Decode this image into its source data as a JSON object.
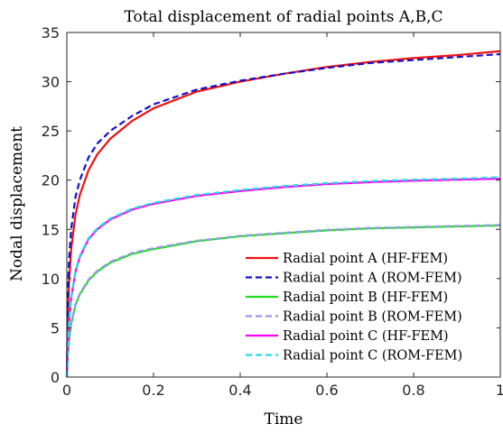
{
  "chart_data": {
    "type": "line",
    "title": "Total displacement of radial points A,B,C",
    "xlabel": "Time",
    "ylabel": "Nodal displacement",
    "xlim": [
      0,
      1
    ],
    "ylim": [
      0,
      35
    ],
    "xticks": [
      0,
      0.2,
      0.4,
      0.6,
      0.8,
      1
    ],
    "xtick_labels": [
      "0",
      "0.2",
      "0.4",
      "0.6",
      "0.8",
      "1"
    ],
    "yticks": [
      0,
      5,
      10,
      15,
      20,
      25,
      30,
      35
    ],
    "ytick_labels": [
      "0",
      "5",
      "10",
      "15",
      "20",
      "25",
      "30",
      "35"
    ],
    "grid": false,
    "legend_position": "bottom-right",
    "x": [
      0,
      0.002,
      0.005,
      0.01,
      0.02,
      0.03,
      0.05,
      0.07,
      0.1,
      0.15,
      0.2,
      0.3,
      0.4,
      0.5,
      0.6,
      0.7,
      0.8,
      0.9,
      1.0
    ],
    "series": [
      {
        "name": "Radial point A (HF-FEM)",
        "color": "#ee1111",
        "dash": "solid",
        "values": [
          0,
          5.5,
          9.5,
          13.0,
          16.5,
          18.5,
          21.0,
          22.6,
          24.2,
          26.0,
          27.3,
          29.0,
          30.0,
          30.8,
          31.5,
          32.0,
          32.4,
          32.7,
          33.1
        ]
      },
      {
        "name": "Radial point A (ROM-FEM)",
        "color": "#1111cc",
        "dash": "dashed",
        "values": [
          0,
          7.5,
          11.8,
          15.0,
          18.3,
          20.0,
          22.3,
          23.7,
          25.0,
          26.5,
          27.7,
          29.2,
          30.1,
          30.8,
          31.4,
          31.9,
          32.2,
          32.5,
          32.8
        ]
      },
      {
        "name": "Radial point B (HF-FEM)",
        "color": "#22dd22",
        "dash": "solid",
        "values": [
          0,
          2.0,
          3.6,
          5.4,
          7.3,
          8.4,
          9.8,
          10.7,
          11.6,
          12.5,
          13.0,
          13.8,
          14.3,
          14.6,
          14.9,
          15.1,
          15.2,
          15.3,
          15.4
        ]
      },
      {
        "name": "Radial point B (ROM-FEM)",
        "color": "#9999ee",
        "dash": "dashed",
        "values": [
          0,
          2.1,
          3.7,
          5.5,
          7.4,
          8.5,
          9.9,
          10.8,
          11.7,
          12.6,
          13.1,
          13.85,
          14.35,
          14.65,
          14.95,
          15.15,
          15.25,
          15.35,
          15.45
        ]
      },
      {
        "name": "Radial point C (HF-FEM)",
        "color": "#ff00ff",
        "dash": "solid",
        "values": [
          0,
          3.0,
          5.5,
          8.0,
          10.7,
          12.2,
          14.0,
          15.0,
          16.0,
          17.0,
          17.6,
          18.4,
          18.9,
          19.3,
          19.6,
          19.8,
          19.95,
          20.05,
          20.15
        ]
      },
      {
        "name": "Radial point C (ROM-FEM)",
        "color": "#22dddd",
        "dash": "dashed",
        "values": [
          0,
          3.1,
          5.6,
          8.1,
          10.8,
          12.3,
          14.1,
          15.1,
          16.1,
          17.1,
          17.7,
          18.5,
          19.0,
          19.4,
          19.7,
          19.9,
          20.05,
          20.15,
          20.3
        ]
      }
    ]
  }
}
